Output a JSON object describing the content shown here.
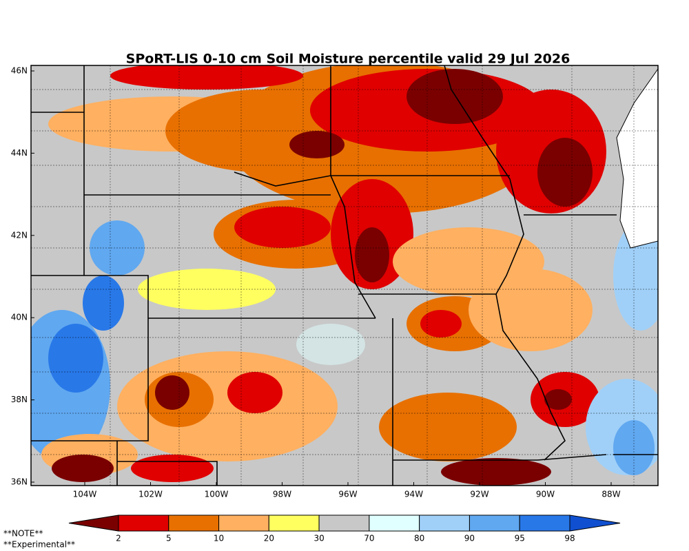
{
  "header": {
    "title": "SPoRT-LIS 0-10 cm Soil Moisture percentile valid 29 Jul 2026"
  },
  "map": {
    "lat_labels": [
      "46N",
      "44N",
      "42N",
      "40N",
      "38N",
      "36N"
    ],
    "lon_labels": [
      "104W",
      "102W",
      "100W",
      "98W",
      "96W",
      "94W",
      "92W",
      "90W",
      "88W"
    ]
  },
  "colorbar": {
    "labels": [
      2,
      5,
      10,
      20,
      30,
      70,
      80,
      90,
      95,
      98
    ],
    "colors": [
      "#7a0000",
      "#e00000",
      "#e87000",
      "#ffb060",
      "#ffff60",
      "#c8c8c8",
      "#e0ffff",
      "#a0d0f8",
      "#60a8f0",
      "#2878e8",
      "#1050d0"
    ]
  },
  "notes": [
    "**NOTE**",
    "**Experimental**"
  ]
}
